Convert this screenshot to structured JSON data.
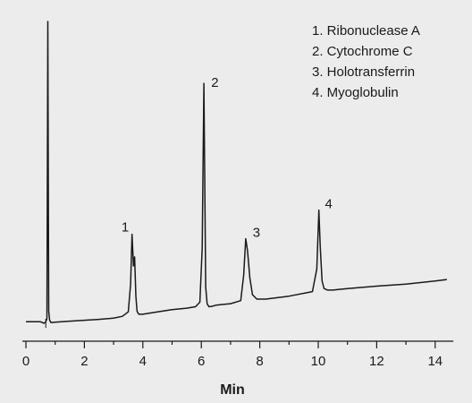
{
  "chart_data": {
    "type": "line",
    "title": "",
    "xlabel": "Min",
    "ylabel": "",
    "xlim": [
      0,
      14.5
    ],
    "ylim": [
      0,
      100
    ],
    "x_ticks": [
      0,
      2,
      4,
      6,
      8,
      10,
      12,
      14
    ],
    "x_tick_labels": [
      "0",
      "2",
      "4",
      "6",
      "8",
      "10",
      "12",
      "14"
    ],
    "grid": false,
    "legend_position": "top-right",
    "colors": {
      "trace": "#1a1a1a",
      "background": "#ececec"
    },
    "series": [
      {
        "x": [
          0.0,
          0.5,
          0.62,
          0.68,
          0.72,
          0.75,
          0.78,
          0.81,
          0.86,
          1.0,
          1.5,
          2.0,
          2.5,
          3.0,
          3.3,
          3.5,
          3.58,
          3.63,
          3.68,
          3.72,
          3.76,
          3.8,
          3.86,
          4.0,
          4.5,
          5.0,
          5.5,
          5.8,
          5.95,
          6.03,
          6.09,
          6.15,
          6.2,
          6.26,
          6.35,
          6.5,
          7.0,
          7.35,
          7.45,
          7.52,
          7.58,
          7.66,
          7.75,
          7.9,
          8.2,
          9.0,
          9.8,
          9.95,
          10.02,
          10.07,
          10.13,
          10.2,
          10.32,
          10.5,
          11.0,
          12.0,
          13.0,
          14.0,
          14.4
        ],
        "y": [
          0.5,
          0.5,
          0.0,
          0.5,
          1.5,
          100.0,
          4.0,
          1.0,
          0.2,
          0.4,
          0.7,
          1.0,
          1.3,
          1.7,
          2.3,
          3.8,
          13.0,
          29.5,
          19.0,
          22.0,
          9.0,
          4.0,
          3.0,
          3.0,
          3.8,
          4.5,
          5.0,
          5.5,
          7.0,
          25.0,
          79.5,
          12.0,
          6.5,
          5.5,
          5.6,
          6.0,
          6.5,
          7.5,
          16.0,
          28.0,
          24.0,
          15.0,
          9.5,
          8.0,
          8.0,
          9.0,
          10.5,
          18.0,
          37.5,
          25.0,
          14.0,
          11.5,
          11.0,
          11.0,
          11.5,
          12.3,
          13.0,
          14.0,
          14.5
        ]
      }
    ],
    "peak_labels": [
      {
        "text": "1",
        "x": 3.7,
        "y": 29.5
      },
      {
        "text": "2",
        "x": 6.1,
        "y": 79.5
      },
      {
        "text": "3",
        "x": 7.58,
        "y": 28.0
      },
      {
        "text": "4",
        "x": 10.05,
        "y": 37.5
      }
    ],
    "legend": [
      "1.  Ribonuclease A",
      "2.  Cytochrome C",
      "3.  Holotransferrin",
      "4.  Myoglobulin"
    ]
  }
}
